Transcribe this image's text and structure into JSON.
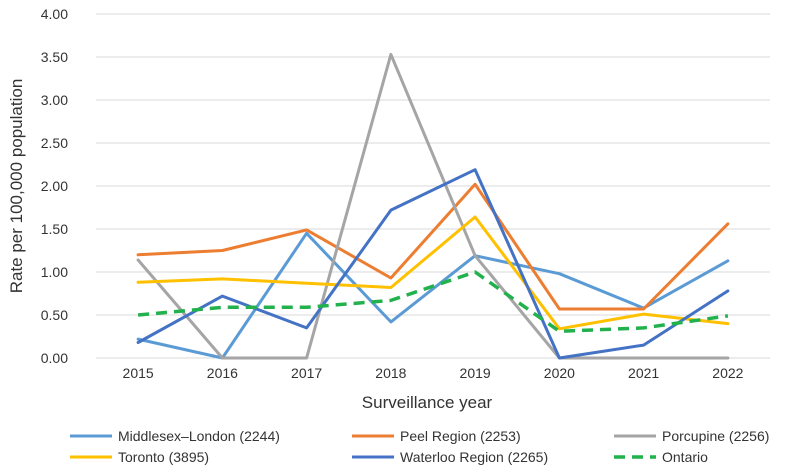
{
  "chart_data": {
    "type": "line",
    "title": "",
    "xlabel": "Surveillance year",
    "ylabel": "Rate per 100,000 population",
    "ylim": [
      0,
      4
    ],
    "yticks": [
      "0.00",
      "0.50",
      "1.00",
      "1.50",
      "2.00",
      "2.50",
      "3.00",
      "3.50",
      "4.00"
    ],
    "categories": [
      "2015",
      "2016",
      "2017",
      "2018",
      "2019",
      "2020",
      "2021",
      "2022"
    ],
    "grid": true,
    "legend_position": "bottom",
    "series": [
      {
        "name": "Middlesex–London (2244)",
        "color": "#5B9BD5",
        "dashed": false,
        "values": [
          0.22,
          0.0,
          1.45,
          0.42,
          1.19,
          0.98,
          0.58,
          1.13
        ]
      },
      {
        "name": "Peel Region (2253)",
        "color": "#ED7D31",
        "dashed": false,
        "values": [
          1.2,
          1.25,
          1.49,
          0.93,
          2.02,
          0.57,
          0.57,
          1.56
        ]
      },
      {
        "name": "Porcupine (2256)",
        "color": "#A5A5A5",
        "dashed": false,
        "values": [
          1.14,
          0.0,
          0.0,
          3.53,
          1.19,
          0.0,
          0.0,
          0.0
        ]
      },
      {
        "name": "Toronto (3895)",
        "color": "#FFC000",
        "dashed": false,
        "values": [
          0.88,
          0.92,
          0.87,
          0.82,
          1.64,
          0.34,
          0.51,
          0.4
        ]
      },
      {
        "name": "Waterloo Region (2265)",
        "color": "#4472C4",
        "dashed": false,
        "values": [
          0.18,
          0.72,
          0.35,
          1.72,
          2.19,
          0.0,
          0.15,
          0.78
        ]
      },
      {
        "name": "Ontario",
        "color": "#22B14C",
        "dashed": true,
        "values": [
          0.5,
          0.59,
          0.59,
          0.67,
          1.0,
          0.31,
          0.35,
          0.49
        ]
      }
    ]
  }
}
